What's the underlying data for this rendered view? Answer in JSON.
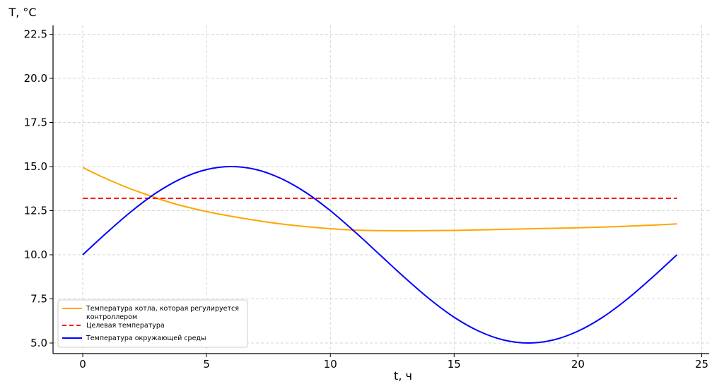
{
  "chart_data": {
    "type": "line",
    "xlabel": "t, ч",
    "ylabel": "T, °C",
    "xlim": [
      -1.2,
      25.3
    ],
    "ylim": [
      4.4,
      23.0
    ],
    "xticks": [
      0,
      5,
      10,
      15,
      20,
      25
    ],
    "xtick_labels": [
      "0",
      "5",
      "10",
      "15",
      "20",
      "25"
    ],
    "yticks": [
      5.0,
      7.5,
      10.0,
      12.5,
      15.0,
      17.5,
      20.0,
      22.5
    ],
    "ytick_labels": [
      "5.0",
      "7.5",
      "10.0",
      "12.5",
      "15.0",
      "17.5",
      "20.0",
      "22.5"
    ],
    "grid": true,
    "legend_position": "lower-left",
    "series": [
      {
        "name": "Температура котла, которая регулируется контроллером",
        "color": "#FFA500",
        "style": "solid",
        "x": [
          0,
          0.5,
          1,
          1.5,
          2,
          2.5,
          3,
          3.5,
          4,
          5,
          6,
          7,
          8,
          9,
          10,
          11,
          12,
          13,
          14,
          15,
          16,
          17,
          18,
          19,
          20,
          21,
          22,
          23,
          24
        ],
        "y": [
          14.95,
          14.6,
          14.28,
          13.98,
          13.7,
          13.45,
          13.2,
          12.98,
          12.78,
          12.45,
          12.18,
          11.95,
          11.75,
          11.6,
          11.48,
          11.4,
          11.37,
          11.36,
          11.37,
          11.38,
          11.41,
          11.44,
          11.47,
          11.5,
          11.53,
          11.57,
          11.62,
          11.68,
          11.75
        ]
      },
      {
        "name": "Целевая температура",
        "color": "#FF0000",
        "style": "dashed",
        "x": [
          0,
          24
        ],
        "y": [
          13.2,
          13.2
        ]
      },
      {
        "name": "Температура окружающей среды",
        "color": "#0000FF",
        "style": "solid",
        "x": [
          0,
          1,
          2,
          3,
          4,
          5,
          6,
          7,
          8,
          9,
          10,
          11,
          12,
          13,
          14,
          15,
          16,
          17,
          18,
          19,
          20,
          21,
          22,
          23,
          24
        ],
        "y": [
          10.0,
          11.29,
          12.5,
          13.54,
          14.33,
          14.83,
          15.0,
          14.83,
          14.33,
          13.54,
          12.5,
          11.29,
          10.0,
          8.71,
          7.5,
          6.46,
          5.67,
          5.17,
          5.0,
          5.17,
          5.67,
          6.46,
          7.5,
          8.71,
          10.0
        ]
      }
    ]
  }
}
